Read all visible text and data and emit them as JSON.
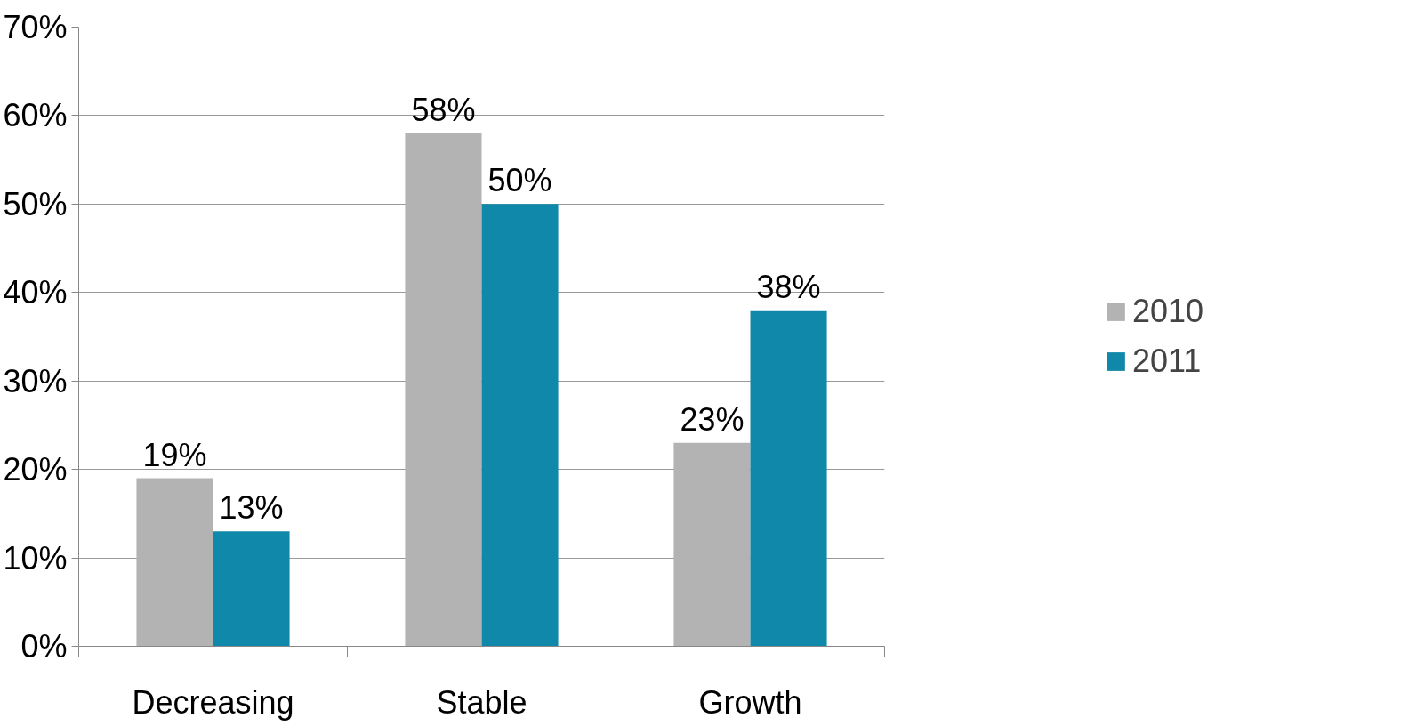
{
  "chart_data": {
    "type": "bar",
    "categories": [
      "Decreasing",
      "Stable",
      "Growth"
    ],
    "series": [
      {
        "name": "2010",
        "color": "#b3b3b3",
        "values": [
          19,
          58,
          23
        ]
      },
      {
        "name": "2011",
        "color": "#1088aa",
        "values": [
          13,
          50,
          38
        ]
      }
    ],
    "ylim": [
      0,
      70
    ],
    "yticks": [
      {
        "value": 0,
        "label": "0%"
      },
      {
        "value": 10,
        "label": "10%"
      },
      {
        "value": 20,
        "label": "20%"
      },
      {
        "value": 30,
        "label": "30%"
      },
      {
        "value": 40,
        "label": "40%"
      },
      {
        "value": 50,
        "label": "50%"
      },
      {
        "value": 60,
        "label": "60%"
      },
      {
        "value": 70,
        "label": "70%"
      }
    ],
    "value_labels": [
      [
        "19%",
        "58%",
        "23%"
      ],
      [
        "13%",
        "50%",
        "38%"
      ]
    ],
    "grid": "y",
    "legend": "right"
  }
}
